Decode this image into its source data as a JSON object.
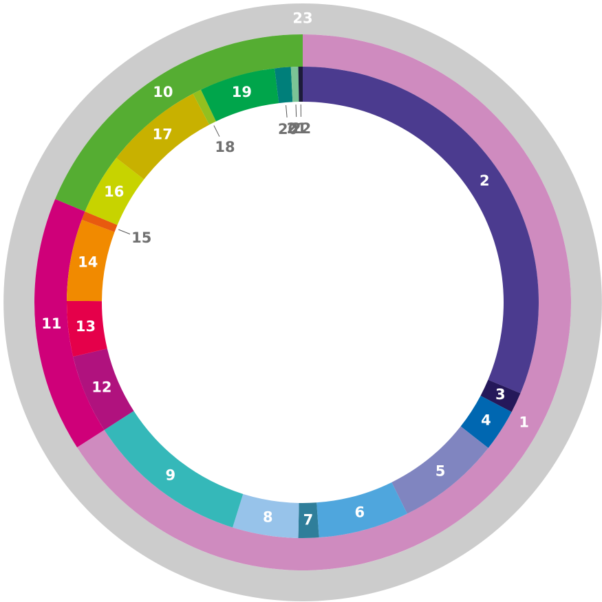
{
  "chart_data": {
    "type": "sunburst",
    "root": {
      "name": "23",
      "value": 100,
      "color": "#cccccc",
      "children": [
        {
          "name": "1",
          "value": 65.9,
          "color": "#cf8bbf",
          "children": [
            {
              "name": "2",
              "value": 31.3,
              "color": "#4b3b8f"
            },
            {
              "name": "3",
              "value": 1.4,
              "color": "#25185a"
            },
            {
              "name": "4",
              "value": 2.9,
              "color": "#0067b1"
            },
            {
              "name": "5",
              "value": 7.1,
              "color": "#8085c0"
            },
            {
              "name": "6",
              "value": 6.2,
              "color": "#4fa6dd"
            },
            {
              "name": "7",
              "value": 1.4,
              "color": "#2f7e9a"
            },
            {
              "name": "8",
              "value": 4.5,
              "color": "#97c3ea"
            },
            {
              "name": "9",
              "value": 11.1,
              "color": "#35b8b9"
            }
          ]
        },
        {
          "name": "11",
          "value": 15.4,
          "color": "#cf0079",
          "children": [
            {
              "name": "12",
              "value": 5.4,
              "color": "#b0127e"
            },
            {
              "name": "13",
              "value": 3.8,
              "color": "#e5004a"
            },
            {
              "name": "14",
              "value": 5.6,
              "color": "#f18a00"
            },
            {
              "name": "15",
              "value": 0.6,
              "color": "#e85a0f"
            }
          ]
        },
        {
          "name": "10",
          "value": 18.7,
          "color": "#55ad32",
          "children": [
            {
              "name": "16",
              "value": 4.2,
              "color": "#c7d300"
            },
            {
              "name": "17",
              "value": 6.8,
              "color": "#c8b100"
            },
            {
              "name": "18",
              "value": 0.6,
              "color": "#93c01f"
            },
            {
              "name": "19",
              "value": 5.2,
              "color": "#00a54b"
            },
            {
              "name": "20",
              "value": 1.1,
              "color": "#007f7a"
            },
            {
              "name": "21",
              "value": 0.5,
              "color": "#7bc496"
            },
            {
              "name": "22",
              "value": 0.3,
              "color": "#1c1b3a"
            }
          ]
        }
      ]
    }
  }
}
